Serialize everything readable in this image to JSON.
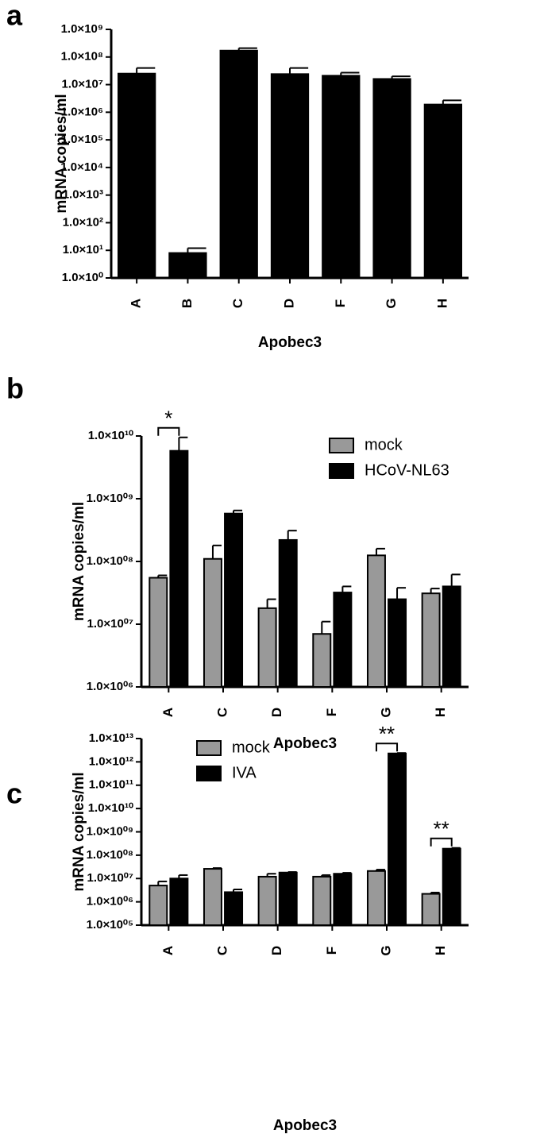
{
  "chart_data": [
    {
      "type": "bar",
      "label": "a",
      "ylabel": "mRNA copies/ml",
      "xlabel": "Apobec3",
      "log": true,
      "categories": [
        "A",
        "B",
        "C",
        "D",
        "F",
        "G",
        "H"
      ],
      "values": [
        25000000,
        8,
        170000000,
        24000000,
        21000000,
        16000000,
        1900000
      ],
      "errors": [
        15000000,
        4,
        40000000,
        16000000,
        6000000,
        4000000,
        800000
      ],
      "color": "#000000",
      "ylim": [
        1,
        1000000000.0
      ],
      "yticks": [
        {
          "value": 1,
          "label": "1.0×10⁰"
        },
        {
          "value": 10,
          "label": "1.0×10¹"
        },
        {
          "value": 100,
          "label": "1.0×10²"
        },
        {
          "value": 1000,
          "label": "1.0×10³"
        },
        {
          "value": 10000,
          "label": "1.0×10⁴"
        },
        {
          "value": 100000,
          "label": "1.0×10⁵"
        },
        {
          "value": 1000000,
          "label": "1.0×10⁶"
        },
        {
          "value": 10000000,
          "label": "1.0×10⁷"
        },
        {
          "value": 100000000,
          "label": "1.0×10⁸"
        },
        {
          "value": 1000000000,
          "label": "1.0×10⁹"
        }
      ]
    },
    {
      "type": "bar",
      "label": "b",
      "ylabel": "mRNA copies/ml",
      "xlabel": "Apobec3",
      "log": true,
      "legend": "upper right",
      "categories": [
        "A",
        "C",
        "D",
        "F",
        "G",
        "H"
      ],
      "series": [
        {
          "name": "mock",
          "color": "#999999",
          "values": [
            55000000,
            110000000,
            18000000,
            7000000,
            125000000,
            31000000
          ],
          "errors": [
            5000000,
            70000000,
            7000000,
            4000000,
            35000000,
            6000000
          ]
        },
        {
          "name": "HCoV-NL63",
          "color": "#000000",
          "values": [
            5800000000,
            580000000,
            220000000,
            32000000,
            25000000,
            40000000
          ],
          "errors": [
            3700000000,
            70000000,
            90000000,
            8000000,
            13000000,
            22000000
          ]
        }
      ],
      "annotations": [
        {
          "text": "*",
          "category": "A"
        }
      ],
      "ylim": [
        1000000,
        10000000000.0
      ],
      "yticks": [
        {
          "value": 1000000,
          "label": "1.0×10⁰⁶"
        },
        {
          "value": 10000000,
          "label": "1.0×10⁰⁷"
        },
        {
          "value": 100000000,
          "label": "1.0×10⁰⁸"
        },
        {
          "value": 1000000000,
          "label": "1.0×10⁰⁹"
        },
        {
          "value": 10000000000.0,
          "label": "1.0×10¹⁰"
        }
      ]
    },
    {
      "type": "bar",
      "label": "c",
      "ylabel": "mRNA copies/ml",
      "xlabel": "Apobec3",
      "log": true,
      "legend": "upper left",
      "categories": [
        "A",
        "C",
        "D",
        "F",
        "G",
        "H"
      ],
      "series": [
        {
          "name": "mock",
          "color": "#999999",
          "values": [
            5000000,
            26000000,
            12000000,
            12000000,
            21000000,
            2200000
          ],
          "errors": [
            2500000,
            2000000,
            4000000,
            2000000,
            3000000,
            300000
          ]
        },
        {
          "name": "IVA",
          "color": "#000000",
          "values": [
            10000000,
            2600000,
            18000000,
            16000000,
            2300000000000.0,
            190000000
          ],
          "errors": [
            4000000,
            800000,
            1000000,
            1500000,
            100000000000.0,
            15000000
          ]
        }
      ],
      "annotations": [
        {
          "text": "**",
          "category": "G"
        },
        {
          "text": "**",
          "category": "H"
        }
      ],
      "ylim": [
        100000,
        10000000000000.0
      ],
      "yticks": [
        {
          "value": 100000,
          "label": "1.0×10⁰⁵"
        },
        {
          "value": 1000000,
          "label": "1.0×10⁰⁶"
        },
        {
          "value": 10000000,
          "label": "1.0×10⁰⁷"
        },
        {
          "value": 100000000,
          "label": "1.0×10⁰⁸"
        },
        {
          "value": 1000000000,
          "label": "1.0×10⁰⁹"
        },
        {
          "value": 10000000000.0,
          "label": "1.0×10¹⁰"
        },
        {
          "value": 100000000000.0,
          "label": "1.0×10¹¹"
        },
        {
          "value": 1000000000000.0,
          "label": "1.0×10¹²"
        },
        {
          "value": 10000000000000.0,
          "label": "1.0×10¹³"
        }
      ]
    }
  ]
}
